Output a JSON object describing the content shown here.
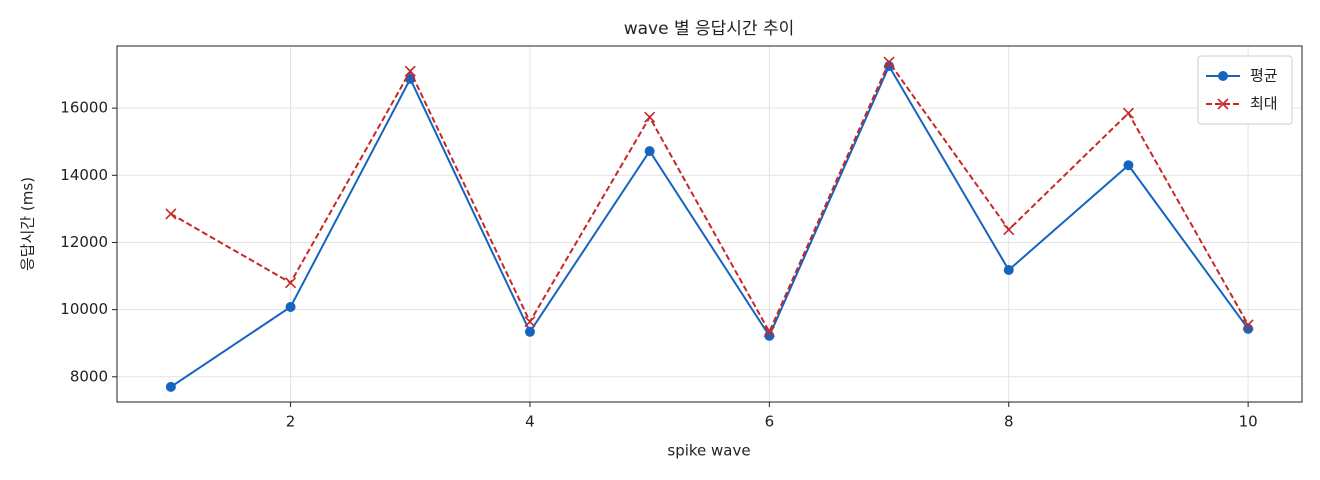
{
  "chart_data": {
    "type": "line",
    "title": "wave 별 응답시간 추이",
    "x_label": "spike wave",
    "y_label": "응답시간 (ms)",
    "x": [
      1,
      2,
      3,
      4,
      5,
      6,
      7,
      8,
      9,
      10
    ],
    "series": [
      {
        "name": "평균",
        "color": "#1565c0",
        "marker": "circle",
        "dashed": false,
        "values": [
          7700,
          10080,
          16870,
          9340,
          14720,
          9220,
          17250,
          11180,
          14300,
          9430
        ]
      },
      {
        "name": "최대",
        "color": "#c62828",
        "marker": "x",
        "dashed": true,
        "values": [
          12850,
          10800,
          17100,
          9640,
          15730,
          9340,
          17370,
          12380,
          15850,
          9550
        ]
      }
    ],
    "xlim": [
      0.55,
      10.45
    ],
    "ylim": [
      7250,
      17850
    ],
    "xticks": [
      2,
      4,
      6,
      8,
      10
    ],
    "yticks": [
      8000,
      10000,
      12000,
      14000,
      16000
    ],
    "grid": true,
    "legend": "upper right"
  }
}
